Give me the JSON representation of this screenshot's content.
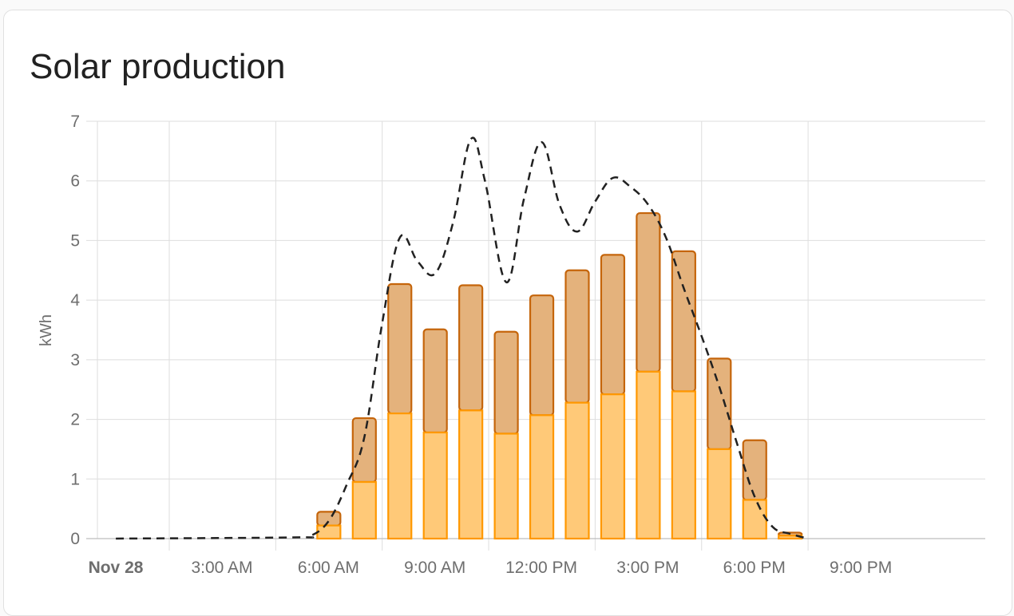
{
  "card": {
    "title": "Solar production"
  },
  "chart_data": {
    "type": "bar",
    "title": "Solar production",
    "ylabel": "kWh",
    "xlabel": "",
    "ylim": [
      0,
      7
    ],
    "yticks": [
      "0",
      "1",
      "2",
      "3",
      "4",
      "5",
      "6",
      "7"
    ],
    "x_tick_labels": [
      "Nov 28",
      "3:00 AM",
      "6:00 AM",
      "9:00 AM",
      "12:00 PM",
      "3:00 PM",
      "6:00 PM",
      "9:00 PM"
    ],
    "x_tick_hours": [
      0,
      3,
      6,
      9,
      12,
      15,
      18,
      21
    ],
    "x_range_hours": [
      -1.5,
      24.5
    ],
    "grid": true,
    "stacked": true,
    "bar_hours": [
      6,
      7,
      8,
      9,
      10,
      11,
      12,
      13,
      14,
      15,
      16,
      17,
      18,
      19
    ],
    "series": [
      {
        "type": "bar",
        "color_fill": "#ffc978",
        "color_stroke": "#ff9800",
        "values": [
          0.22,
          0.95,
          2.1,
          1.78,
          2.15,
          1.76,
          2.07,
          2.28,
          2.42,
          2.8,
          2.47,
          1.5,
          0.65,
          0.05
        ]
      },
      {
        "type": "bar",
        "color_fill": "#e4b27c",
        "color_stroke": "#c5650b",
        "values": [
          0.23,
          1.07,
          2.17,
          1.73,
          2.1,
          1.71,
          2.01,
          2.22,
          2.34,
          2.66,
          2.35,
          1.52,
          1.0,
          0.05
        ]
      },
      {
        "type": "line",
        "style": "dashed",
        "color_stroke": "#212121",
        "x_hours": [
          0,
          5,
          5.5,
          6,
          6.5,
          7,
          7.5,
          8,
          8.5,
          9,
          9.5,
          10,
          10.4,
          11,
          11.5,
          12,
          12.5,
          13,
          13.5,
          14,
          14.5,
          15,
          15.5,
          16,
          16.5,
          17,
          17.5,
          18,
          18.5,
          19,
          19.5
        ],
        "values": [
          0,
          0.02,
          0.05,
          0.3,
          0.9,
          1.7,
          3.6,
          5.05,
          4.65,
          4.45,
          5.3,
          6.7,
          6.0,
          4.3,
          5.7,
          6.65,
          5.6,
          5.15,
          5.65,
          6.05,
          5.9,
          5.6,
          5.05,
          4.2,
          3.4,
          2.55,
          1.6,
          0.7,
          0.2,
          0.08,
          0.0
        ]
      }
    ]
  }
}
